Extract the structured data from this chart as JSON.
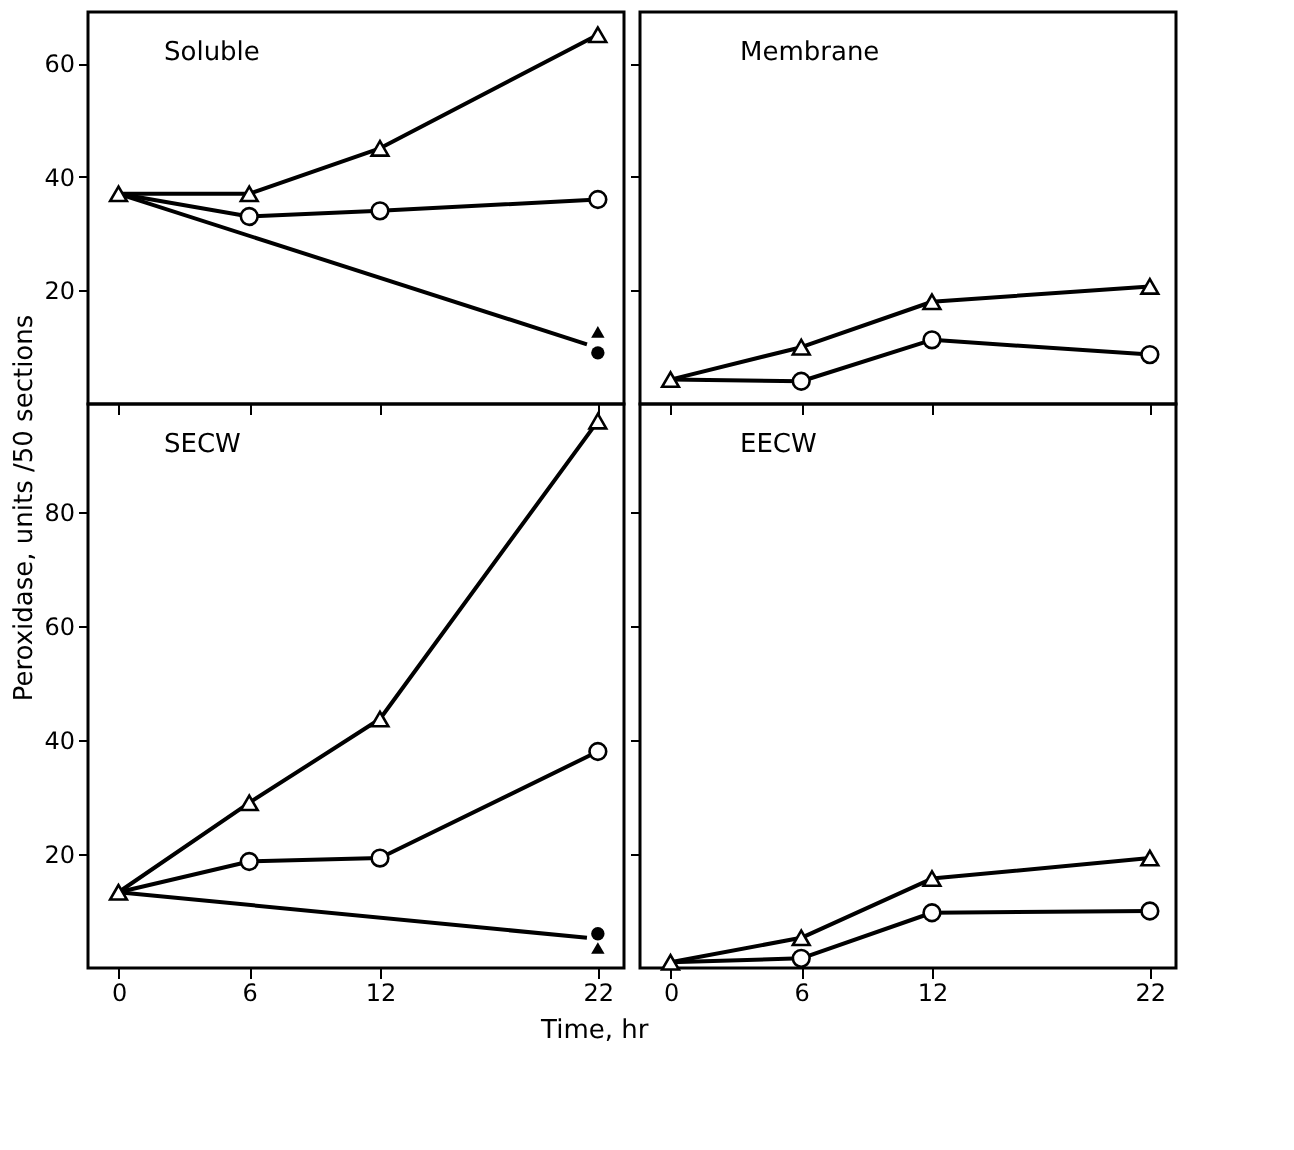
{
  "chart_data": [
    {
      "type": "line",
      "title": "Soluble",
      "ylabel": "Peroxidase, units /50 sections",
      "x": [
        0,
        6,
        12,
        22
      ],
      "xlim": [
        -1.4,
        23.2
      ],
      "xticks": [
        0,
        6,
        12,
        22
      ],
      "ylim": [
        0,
        69
      ],
      "yticks": [
        20,
        40,
        60
      ],
      "tick_labels": "y",
      "grid": false,
      "line_style": "solid",
      "series": [
        {
          "color": "#000000",
          "marker": "triangle",
          "values": [
            37,
            37,
            45,
            65
          ]
        },
        {
          "color": "#000000",
          "marker": "circle",
          "values": [
            37,
            33,
            34,
            36
          ]
        },
        {
          "color": "#000000",
          "marker": "none",
          "x": [
            0,
            21.5
          ],
          "values": [
            37,
            10.5
          ]
        },
        {
          "type": "scatter",
          "color": "#000000",
          "marker": "triangle",
          "x": [
            22
          ],
          "values": [
            12.7
          ]
        },
        {
          "type": "scatter",
          "color": "#000000",
          "marker": "circle",
          "x": [
            22
          ],
          "values": [
            9
          ]
        }
      ]
    },
    {
      "type": "line",
      "title": "Membrane",
      "x": [
        0,
        6,
        12,
        22
      ],
      "xlim": [
        -1.4,
        23.2
      ],
      "xticks": [
        0,
        6,
        12,
        22
      ],
      "ylim": [
        0,
        69
      ],
      "yticks": [
        20,
        40,
        60
      ],
      "tick_labels": false,
      "grid": false,
      "line_style": "solid",
      "series": [
        {
          "color": "#000000",
          "marker": "triangle",
          "values": [
            4.3,
            10,
            18,
            20.7
          ]
        },
        {
          "color": "#000000",
          "marker": "circle",
          "values": [
            4.3,
            4,
            11.3,
            8.7
          ]
        }
      ]
    },
    {
      "type": "line",
      "title": "SECW",
      "xlabel": "Time,   hr",
      "x": [
        0,
        6,
        12,
        22
      ],
      "xlim": [
        -1.4,
        23.2
      ],
      "xticks": [
        0,
        6,
        12,
        22
      ],
      "ylim": [
        0,
        99
      ],
      "yticks": [
        20,
        40,
        60,
        80
      ],
      "grid": false,
      "line_style": "solid",
      "series": [
        {
          "color": "#000000",
          "marker": "triangle",
          "values": [
            13.3,
            29,
            43.7,
            96
          ]
        },
        {
          "color": "#000000",
          "marker": "circle",
          "values": [
            13.3,
            18.7,
            19.3,
            38
          ]
        },
        {
          "color": "#000000",
          "marker": "none",
          "x": [
            0,
            21.5
          ],
          "values": [
            13.3,
            5.3
          ]
        },
        {
          "type": "scatter",
          "color": "#000000",
          "marker": "circle",
          "x": [
            22
          ],
          "values": [
            6
          ]
        },
        {
          "type": "scatter",
          "color": "#000000",
          "marker": "triangle",
          "x": [
            22
          ],
          "values": [
            3.5
          ]
        }
      ]
    },
    {
      "type": "line",
      "title": "EECW",
      "x": [
        0,
        6,
        12,
        22
      ],
      "xlim": [
        -1.4,
        23.2
      ],
      "xticks": [
        0,
        6,
        12,
        22
      ],
      "ylim": [
        0,
        99
      ],
      "yticks": [
        20,
        40,
        60,
        80
      ],
      "tick_labels": "x",
      "grid": false,
      "line_style": "solid",
      "series": [
        {
          "color": "#000000",
          "marker": "triangle",
          "values": [
            1,
            5.3,
            15.7,
            19.3
          ]
        },
        {
          "color": "#000000",
          "marker": "circle",
          "values": [
            1,
            1.7,
            9.7,
            10
          ]
        }
      ]
    }
  ]
}
